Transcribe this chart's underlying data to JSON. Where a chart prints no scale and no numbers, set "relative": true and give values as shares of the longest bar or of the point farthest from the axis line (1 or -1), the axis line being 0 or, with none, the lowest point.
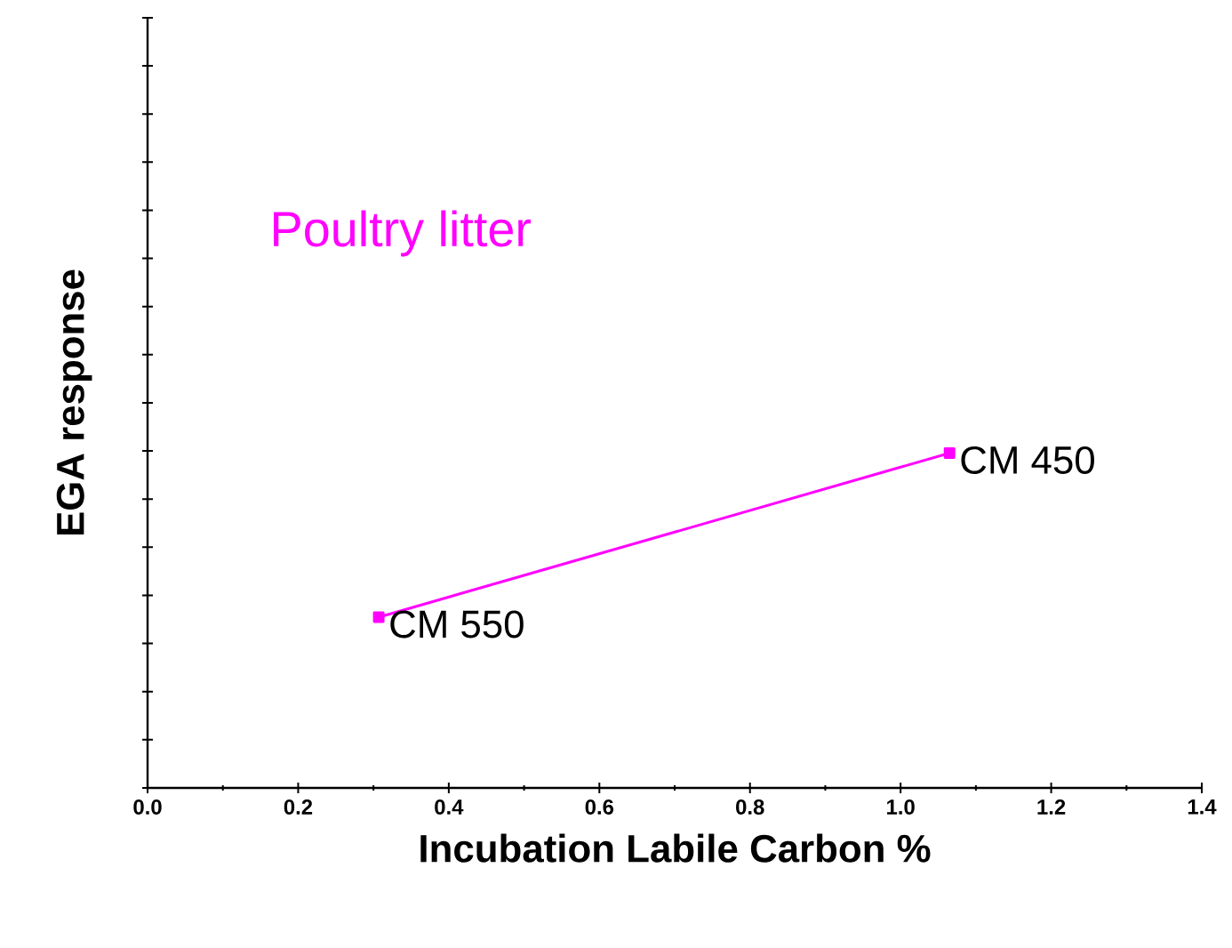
{
  "chart_data": {
    "type": "line",
    "relative": true,
    "xlabel": "Incubation Labile Carbon %",
    "ylabel": "EGA response",
    "xlim": [
      0.0,
      1.4
    ],
    "xticks": [
      {
        "value": 0.0,
        "label": "0.0"
      },
      {
        "value": 0.2,
        "label": "0.2"
      },
      {
        "value": 0.4,
        "label": "0.4"
      },
      {
        "value": 0.6,
        "label": "0.6"
      },
      {
        "value": 0.8,
        "label": "0.8"
      },
      {
        "value": 1.0,
        "label": "1.0"
      },
      {
        "value": 1.2,
        "label": "1.2"
      },
      {
        "value": 1.4,
        "label": "1.4"
      }
    ],
    "series": [
      {
        "name": "Poultry litter",
        "color": "#ff00ff",
        "x": [
          0.307,
          1.065
        ],
        "values": [
          0.51,
          1
        ]
      }
    ],
    "marker": "square",
    "grid": false,
    "annotations": [
      {
        "text": "CM 550",
        "x": 0.307,
        "y": 0.51
      },
      {
        "text": "CM 450",
        "x": 1.065,
        "y": 1
      }
    ]
  }
}
